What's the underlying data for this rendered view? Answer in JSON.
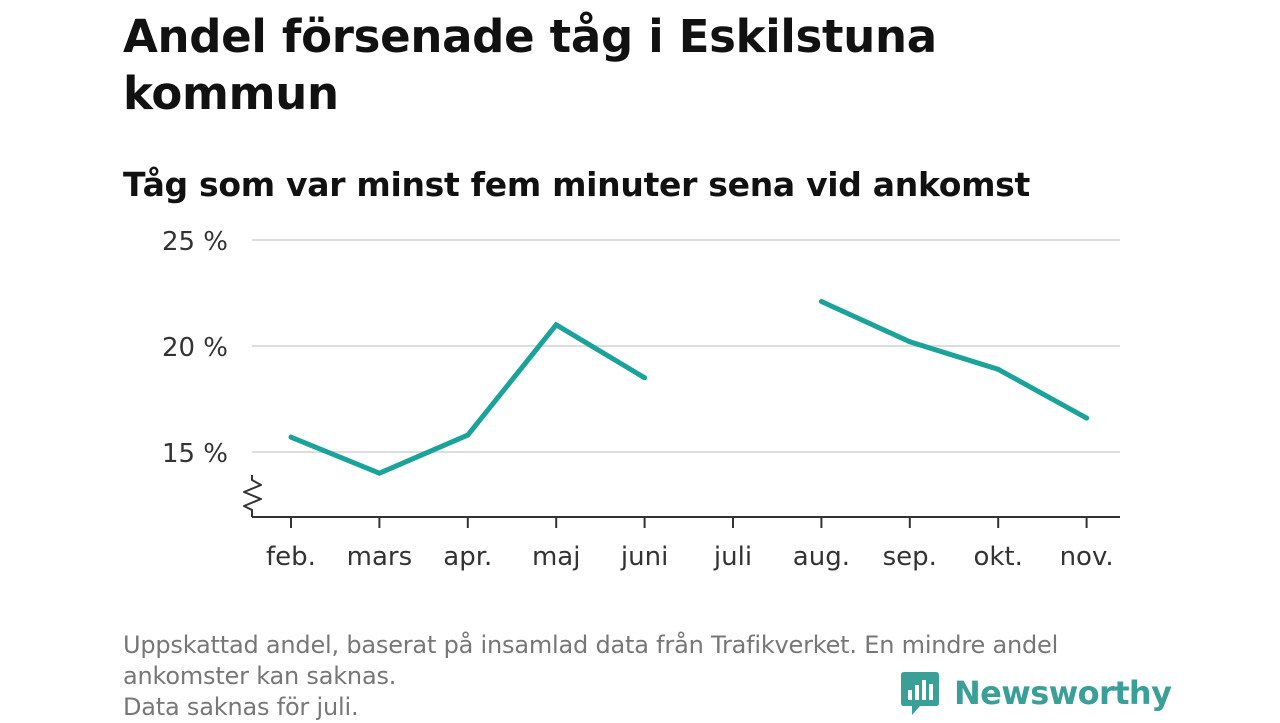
{
  "title": "Andel försenade tåg i Eskilstuna kommun",
  "subtitle": "Tåg som var minst fem minuter sena vid ankomst",
  "chart_data": {
    "type": "line",
    "categories": [
      "feb.",
      "mars",
      "apr.",
      "maj",
      "juni",
      "juli",
      "aug.",
      "sep.",
      "okt.",
      "nov."
    ],
    "series": [
      {
        "values": [
          15.7,
          14.0,
          15.8,
          21.0,
          18.5,
          null,
          22.1,
          20.2,
          18.9,
          16.6
        ]
      }
    ],
    "yticks": [
      {
        "value": 15,
        "label": "15 %"
      },
      {
        "value": 20,
        "label": "20 %"
      },
      {
        "value": 25,
        "label": "25 %"
      }
    ],
    "ylim": [
      12,
      25
    ],
    "y_axis_break": true,
    "grid": true,
    "xlabel": "",
    "ylabel": "",
    "line_color": "#1aa39a",
    "grid_color": "#dddddd"
  },
  "footnote": {
    "lines": [
      "Uppskattad andel, baserat på insamlad data från Trafikverket. En mindre andel",
      "ankomster kan saknas.",
      "Data saknas för juli."
    ]
  },
  "brand": {
    "name": "Newsworthy",
    "icon": "newsworthy-logo-icon",
    "color": "#3a9f97"
  }
}
